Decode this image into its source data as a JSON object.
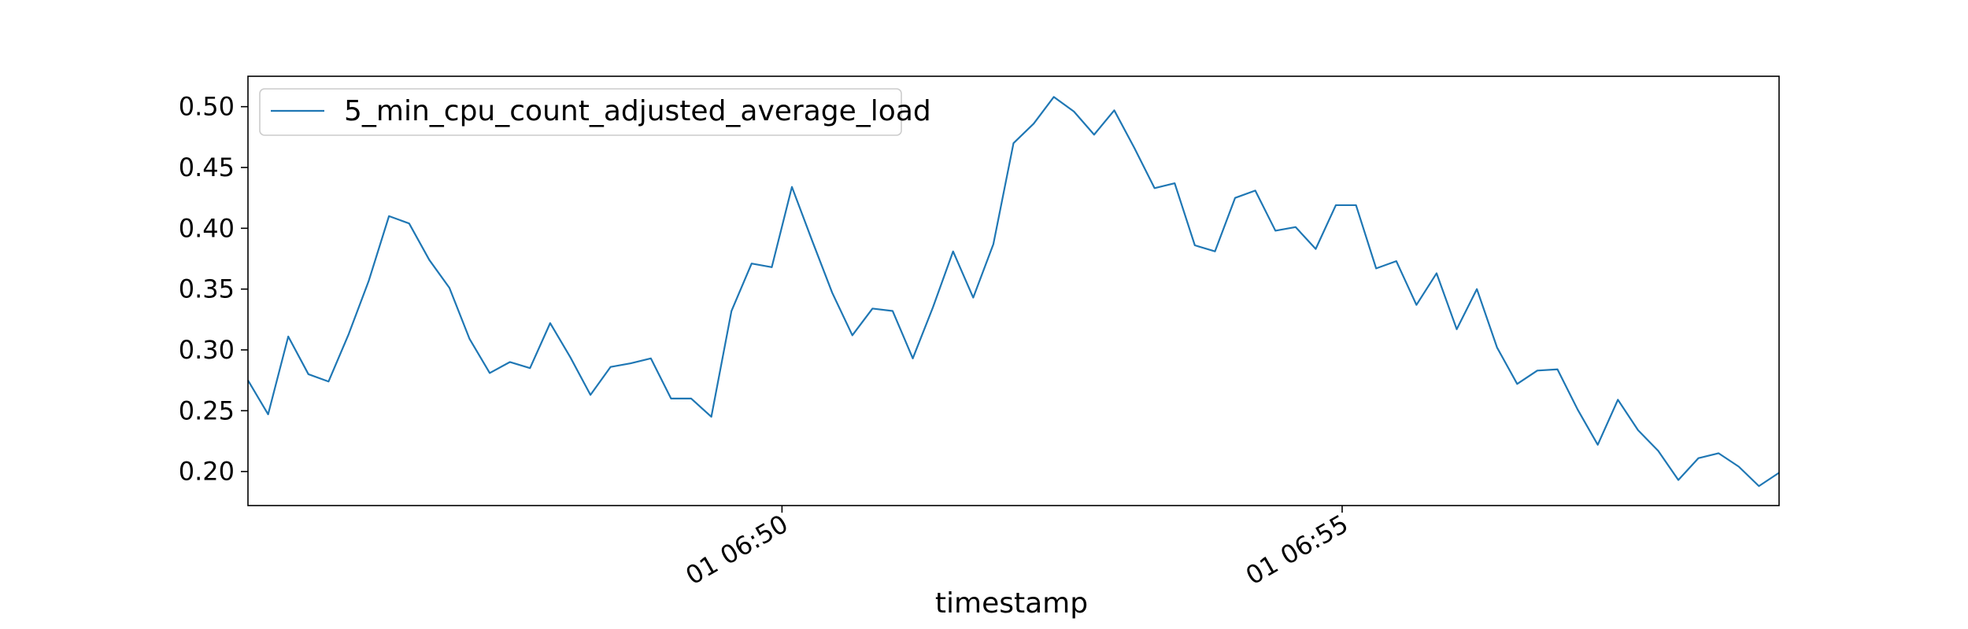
{
  "chart_data": {
    "type": "line",
    "xlabel": "timestamp",
    "ylabel": "",
    "legend_position": "top-left",
    "grid": false,
    "xlim": [
      "06:45:14",
      "06:58:54"
    ],
    "ylim": [
      0.172,
      0.525
    ],
    "x_ticks": [
      {
        "time": "06:50:00",
        "label": "01 06:50"
      },
      {
        "time": "06:55:00",
        "label": "01 06:55"
      }
    ],
    "y_ticks": [
      {
        "value": 0.2,
        "label": "0.20"
      },
      {
        "value": 0.25,
        "label": "0.25"
      },
      {
        "value": 0.3,
        "label": "0.30"
      },
      {
        "value": 0.35,
        "label": "0.35"
      },
      {
        "value": 0.4,
        "label": "0.40"
      },
      {
        "value": 0.45,
        "label": "0.45"
      },
      {
        "value": 0.5,
        "label": "0.50"
      }
    ],
    "series": [
      {
        "name": "5_min_cpu_count_adjusted_average_load",
        "color": "#1f77b4",
        "x_start": "06:45:14",
        "x_end": "06:58:54",
        "values": [
          0.275,
          0.247,
          0.311,
          0.28,
          0.274,
          0.313,
          0.357,
          0.41,
          0.404,
          0.374,
          0.351,
          0.309,
          0.281,
          0.29,
          0.285,
          0.322,
          0.294,
          0.263,
          0.286,
          0.289,
          0.293,
          0.26,
          0.26,
          0.245,
          0.332,
          0.371,
          0.368,
          0.434,
          0.39,
          0.347,
          0.312,
          0.334,
          0.332,
          0.293,
          0.335,
          0.381,
          0.343,
          0.387,
          0.47,
          0.486,
          0.508,
          0.496,
          0.477,
          0.497,
          0.466,
          0.433,
          0.437,
          0.386,
          0.381,
          0.425,
          0.431,
          0.398,
          0.401,
          0.383,
          0.419,
          0.419,
          0.367,
          0.373,
          0.337,
          0.363,
          0.317,
          0.35,
          0.302,
          0.272,
          0.283,
          0.284,
          0.251,
          0.222,
          0.259,
          0.234,
          0.217,
          0.193,
          0.211,
          0.215,
          0.204,
          0.188,
          0.199
        ]
      }
    ]
  }
}
